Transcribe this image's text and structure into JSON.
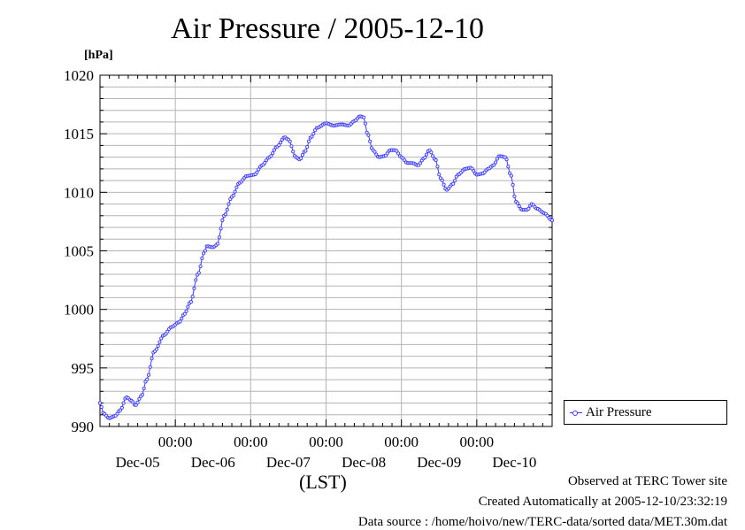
{
  "chart_data": {
    "type": "line",
    "title": "Air Pressure / 2005-12-10",
    "ylabel": "[hPa]",
    "xlabel": "(LST)",
    "ylim": [
      990,
      1020
    ],
    "yticks": [
      990,
      995,
      1000,
      1005,
      1010,
      1015,
      1020
    ],
    "xlim": [
      0,
      6
    ],
    "xticks": [
      {
        "x": 1,
        "time": "00:00",
        "date": "Dec-05"
      },
      {
        "x": 2,
        "time": "00:00",
        "date": "Dec-06"
      },
      {
        "x": 3,
        "time": "00:00",
        "date": "Dec-07"
      },
      {
        "x": 4,
        "time": "00:00",
        "date": "Dec-08"
      },
      {
        "x": 5,
        "time": "00:00",
        "date": "Dec-09"
      }
    ],
    "xtick_date_extra": "Dec-10",
    "grid": true,
    "legend_position": "right",
    "series": [
      {
        "name": "Air Pressure",
        "color": "#3b3bff",
        "marker": "circle",
        "points": [
          [
            0.0,
            992.0
          ],
          [
            0.05,
            991.1
          ],
          [
            0.12,
            990.7
          ],
          [
            0.2,
            990.9
          ],
          [
            0.27,
            991.4
          ],
          [
            0.35,
            992.5
          ],
          [
            0.42,
            992.2
          ],
          [
            0.47,
            991.8
          ],
          [
            0.55,
            992.6
          ],
          [
            0.62,
            994.0
          ],
          [
            0.72,
            996.4
          ],
          [
            0.85,
            997.8
          ],
          [
            0.95,
            998.5
          ],
          [
            1.05,
            998.9
          ],
          [
            1.12,
            999.6
          ],
          [
            1.2,
            1000.6
          ],
          [
            1.3,
            1003.0
          ],
          [
            1.38,
            1004.8
          ],
          [
            1.42,
            1005.4
          ],
          [
            1.5,
            1005.3
          ],
          [
            1.55,
            1005.5
          ],
          [
            1.65,
            1008.0
          ],
          [
            1.75,
            1009.6
          ],
          [
            1.85,
            1010.8
          ],
          [
            1.95,
            1011.4
          ],
          [
            2.05,
            1011.5
          ],
          [
            2.15,
            1012.3
          ],
          [
            2.25,
            1013.0
          ],
          [
            2.35,
            1013.9
          ],
          [
            2.45,
            1014.7
          ],
          [
            2.5,
            1014.5
          ],
          [
            2.6,
            1013.0
          ],
          [
            2.65,
            1012.8
          ],
          [
            2.72,
            1013.5
          ],
          [
            2.8,
            1014.7
          ],
          [
            2.88,
            1015.5
          ],
          [
            3.0,
            1015.9
          ],
          [
            3.1,
            1015.7
          ],
          [
            3.2,
            1015.8
          ],
          [
            3.3,
            1015.7
          ],
          [
            3.38,
            1016.1
          ],
          [
            3.45,
            1016.5
          ],
          [
            3.5,
            1016.4
          ],
          [
            3.55,
            1015.0
          ],
          [
            3.62,
            1013.6
          ],
          [
            3.7,
            1013.0
          ],
          [
            3.78,
            1013.1
          ],
          [
            3.85,
            1013.6
          ],
          [
            3.92,
            1013.6
          ],
          [
            4.0,
            1013.0
          ],
          [
            4.08,
            1012.5
          ],
          [
            4.15,
            1012.5
          ],
          [
            4.22,
            1012.3
          ],
          [
            4.3,
            1012.9
          ],
          [
            4.37,
            1013.6
          ],
          [
            4.45,
            1012.8
          ],
          [
            4.52,
            1011.2
          ],
          [
            4.6,
            1010.2
          ],
          [
            4.68,
            1010.7
          ],
          [
            4.75,
            1011.5
          ],
          [
            4.85,
            1012.0
          ],
          [
            4.92,
            1012.1
          ],
          [
            5.0,
            1011.5
          ],
          [
            5.08,
            1011.6
          ],
          [
            5.15,
            1012.0
          ],
          [
            5.22,
            1012.3
          ],
          [
            5.3,
            1013.1
          ],
          [
            5.38,
            1013.0
          ],
          [
            5.45,
            1011.5
          ],
          [
            5.52,
            1009.2
          ],
          [
            5.6,
            1008.5
          ],
          [
            5.67,
            1008.5
          ],
          [
            5.73,
            1009.0
          ],
          [
            5.8,
            1008.6
          ],
          [
            5.9,
            1008.2
          ],
          [
            6.0,
            1007.6
          ]
        ]
      }
    ]
  },
  "footer": {
    "line1": "Observed at TERC Tower site",
    "line2": "Created Automatically at 2005-12-10/23:32:19",
    "line3": "Data source : /home/hoivo/new/TERC-data/sorted  data/MET.30m.dat"
  }
}
